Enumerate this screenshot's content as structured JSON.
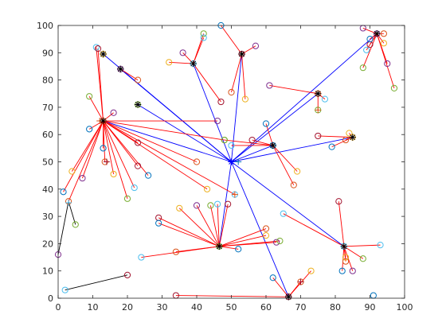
{
  "chart_data": {
    "type": "scatter",
    "title": "",
    "xlabel": "",
    "ylabel": "",
    "xlim": [
      0,
      100
    ],
    "ylim": [
      0,
      100
    ],
    "xticks": [
      0,
      10,
      20,
      30,
      40,
      50,
      60,
      70,
      80,
      90,
      100
    ],
    "yticks": [
      0,
      10,
      20,
      30,
      40,
      50,
      60,
      70,
      80,
      90,
      100
    ],
    "grid": false,
    "legend": "none",
    "colors": {
      "backbone": "#0000ff",
      "cluster": "#ff0000",
      "head": "#000000",
      "extra": "#000000",
      "marker_palette": [
        "#0072bd",
        "#d95319",
        "#edb120",
        "#7e2f8e",
        "#77ac30",
        "#4dbeee",
        "#a2142f"
      ]
    },
    "sink": [
      50,
      50
    ],
    "clusters": [
      {
        "head": [
          13,
          65
        ],
        "members": [
          [
            1.5,
            39
          ],
          [
            3,
            35.5
          ],
          [
            4,
            46.5
          ],
          [
            7,
            44
          ],
          [
            9,
            74
          ],
          [
            11,
            92
          ],
          [
            11.5,
            91.5
          ],
          [
            13,
            55
          ],
          [
            13.5,
            50
          ],
          [
            16,
            45.5
          ],
          [
            16,
            68
          ],
          [
            20,
            36.5
          ],
          [
            22,
            40.5
          ],
          [
            23,
            48.5
          ],
          [
            26,
            45
          ],
          [
            40,
            50
          ],
          [
            43,
            40
          ],
          [
            46,
            65
          ],
          [
            48,
            58
          ],
          [
            51,
            38
          ],
          [
            23,
            57
          ],
          [
            9,
            62
          ]
        ]
      },
      {
        "head": [
          13,
          89.5
        ],
        "members": []
      },
      {
        "head": [
          18,
          84
        ],
        "members": [
          [
            23,
            80
          ]
        ]
      },
      {
        "head": [
          23,
          71
        ],
        "members": []
      },
      {
        "head": [
          39,
          86
        ],
        "members": [
          [
            32,
            86.5
          ],
          [
            36,
            90
          ],
          [
            42,
            97
          ],
          [
            42,
            95.5
          ],
          [
            47,
            72
          ]
        ]
      },
      {
        "head": [
          53,
          89.5
        ],
        "members": [
          [
            47,
            100
          ],
          [
            50,
            75.5
          ],
          [
            54,
            73
          ],
          [
            57,
            92.5
          ]
        ]
      },
      {
        "head": [
          62,
          56
        ],
        "members": [
          [
            48,
            58
          ],
          [
            50,
            56
          ],
          [
            56,
            58
          ],
          [
            60,
            64
          ],
          [
            68,
            41.5
          ],
          [
            69,
            46.5
          ]
        ]
      },
      {
        "head": [
          75,
          75
        ],
        "members": [
          [
            61,
            78
          ],
          [
            75,
            69
          ],
          [
            77,
            73
          ]
        ]
      },
      {
        "head": [
          85,
          59
        ],
        "members": [
          [
            75,
            59.5
          ],
          [
            79,
            55.5
          ],
          [
            83,
            58
          ],
          [
            84,
            60.5
          ]
        ]
      },
      {
        "head": [
          92,
          97
        ],
        "members": [
          [
            88,
            99
          ],
          [
            88,
            84.5
          ],
          [
            89,
            91
          ],
          [
            90,
            93
          ],
          [
            90,
            95
          ],
          [
            94,
            97
          ],
          [
            94,
            93.5
          ],
          [
            95,
            86
          ],
          [
            97,
            77
          ]
        ]
      },
      {
        "head": [
          46.5,
          19
        ],
        "members": [
          [
            24,
            15
          ],
          [
            29,
            29.5
          ],
          [
            29,
            27.5
          ],
          [
            34,
            17
          ],
          [
            35,
            33
          ],
          [
            40,
            34
          ],
          [
            44,
            34
          ],
          [
            46,
            34.5
          ],
          [
            49,
            34.5
          ],
          [
            52,
            18
          ],
          [
            60,
            25.5
          ],
          [
            60,
            23
          ],
          [
            63,
            20.5
          ],
          [
            64,
            21
          ]
        ]
      },
      {
        "head": [
          82.5,
          19
        ],
        "members": [
          [
            65,
            31
          ],
          [
            81,
            35.5
          ],
          [
            82,
            10
          ],
          [
            83,
            13.5
          ],
          [
            83,
            15
          ],
          [
            85,
            10
          ],
          [
            88,
            14.5
          ],
          [
            93,
            19.5
          ]
        ]
      },
      {
        "head": [
          66.5,
          0.5
        ],
        "members": [
          [
            34,
            1
          ],
          [
            62,
            7.5
          ],
          [
            70,
            6
          ],
          [
            73,
            10
          ]
        ]
      }
    ],
    "isolated_links": [
      {
        "from": [
          3,
          35.5
        ],
        "to": [
          5,
          27
        ]
      },
      {
        "from": [
          3,
          35.5
        ],
        "to": [
          0,
          16
        ]
      },
      {
        "from": [
          2,
          3
        ],
        "to": [
          20,
          8.5
        ]
      }
    ],
    "extra_markers": [
      {
        "x": 12,
        "y": 65,
        "color": "#d95319",
        "symbol": "+"
      },
      {
        "x": 14,
        "y": 50,
        "color": "#a2142f",
        "symbol": "+"
      },
      {
        "x": 3,
        "y": 35,
        "color": "#4dbeee",
        "symbol": "+"
      },
      {
        "x": 51,
        "y": 38,
        "color": "#d95319",
        "symbol": "+"
      },
      {
        "x": 75,
        "y": 69,
        "color": "#d95319",
        "symbol": "+"
      },
      {
        "x": 70,
        "y": 6,
        "color": "#a2142f",
        "symbol": "+"
      },
      {
        "x": 13,
        "y": 89.5,
        "color": "#0072bd",
        "symbol": "+"
      },
      {
        "x": 52,
        "y": 50,
        "color": "#0072bd",
        "symbol": "+"
      }
    ],
    "standalone_nodes": [
      {
        "x": 0,
        "y": 16
      },
      {
        "x": 5,
        "y": 27
      },
      {
        "x": 2,
        "y": 3
      },
      {
        "x": 20,
        "y": 8.5
      },
      {
        "x": 91,
        "y": 1
      }
    ]
  }
}
